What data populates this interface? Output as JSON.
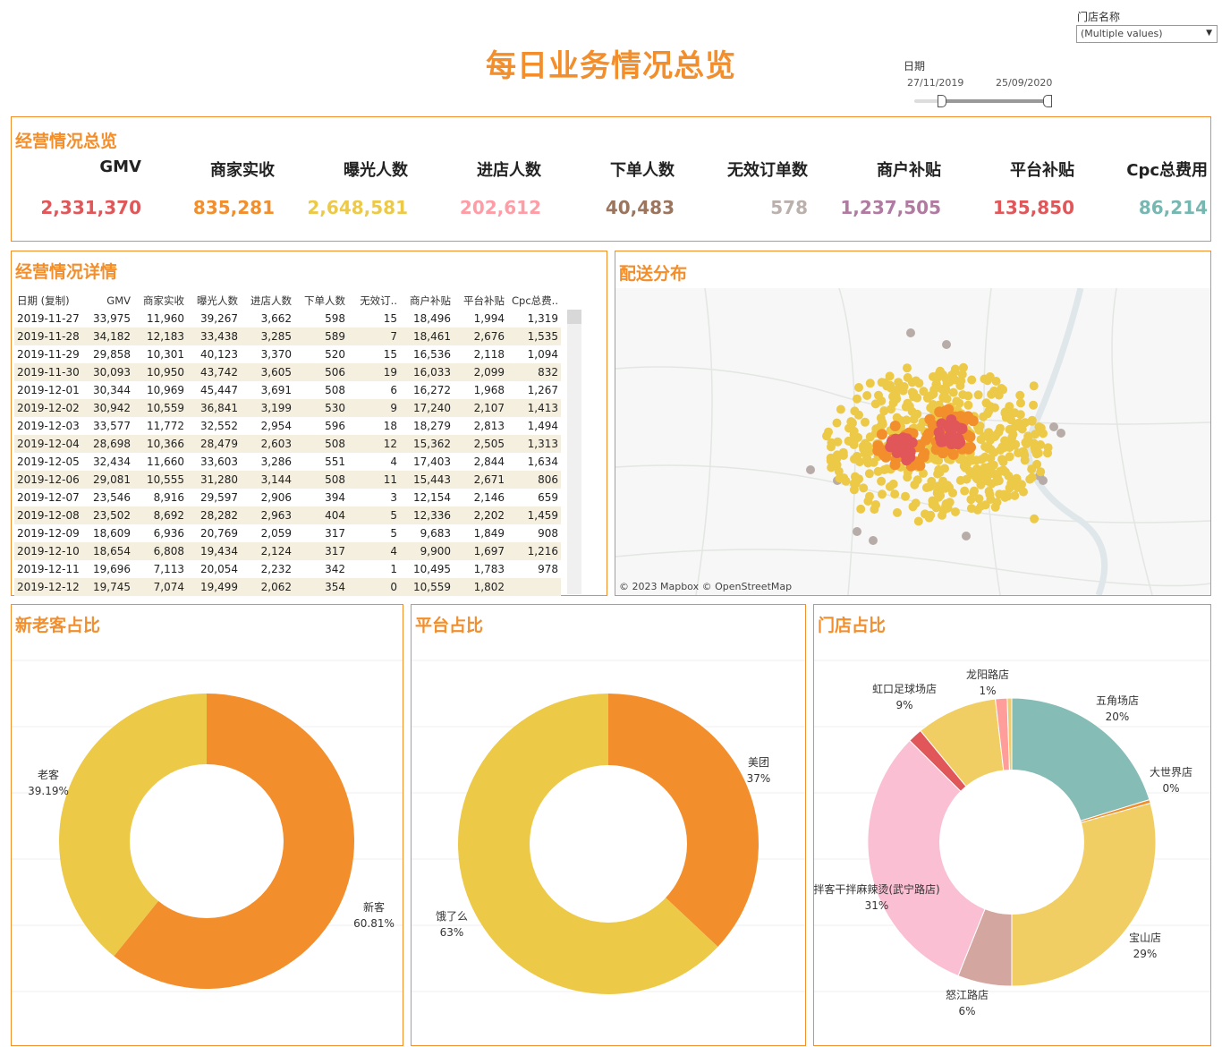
{
  "title": "每日业务情况总览",
  "filters": {
    "store_label": "门店名称",
    "store_value": "(Multiple values)",
    "date_label": "日期",
    "date_start": "27/11/2019",
    "date_end": "25/09/2020"
  },
  "overview": {
    "title": "经营情况总览",
    "kpis": [
      {
        "label": "GMV",
        "value": "2,331,370",
        "color": "#e15759"
      },
      {
        "label": "商家实收",
        "value": "835,281",
        "color": "#f28e2b"
      },
      {
        "label": "曝光人数",
        "value": "2,648,581",
        "color": "#edc948"
      },
      {
        "label": "进店人数",
        "value": "202,612",
        "color": "#ff9da7"
      },
      {
        "label": "下单人数",
        "value": "40,483",
        "color": "#9c755f"
      },
      {
        "label": "无效订单数",
        "value": "578",
        "color": "#bab0ac"
      },
      {
        "label": "商户补贴",
        "value": "1,237,505",
        "color": "#b07aa1"
      },
      {
        "label": "平台补贴",
        "value": "135,850",
        "color": "#e15759"
      },
      {
        "label": "Cpc总费用",
        "value": "86,214",
        "color": "#76b7b2"
      }
    ]
  },
  "detail": {
    "title": "经营情况详情",
    "columns": [
      "日期 (复制)",
      "GMV",
      "商家实收",
      "曝光人数",
      "进店人数",
      "下单人数",
      "无效订..",
      "商户补贴",
      "平台补贴",
      "Cpc总费.."
    ],
    "rows": [
      [
        "2019-11-27",
        "33,975",
        "11,960",
        "39,267",
        "3,662",
        "598",
        "15",
        "18,496",
        "1,994",
        "1,319"
      ],
      [
        "2019-11-28",
        "34,182",
        "12,183",
        "33,438",
        "3,285",
        "589",
        "7",
        "18,461",
        "2,676",
        "1,535"
      ],
      [
        "2019-11-29",
        "29,858",
        "10,301",
        "40,123",
        "3,370",
        "520",
        "15",
        "16,536",
        "2,118",
        "1,094"
      ],
      [
        "2019-11-30",
        "30,093",
        "10,950",
        "43,742",
        "3,605",
        "506",
        "19",
        "16,033",
        "2,099",
        "832"
      ],
      [
        "2019-12-01",
        "30,344",
        "10,969",
        "45,447",
        "3,691",
        "508",
        "6",
        "16,272",
        "1,968",
        "1,267"
      ],
      [
        "2019-12-02",
        "30,942",
        "10,559",
        "36,841",
        "3,199",
        "530",
        "9",
        "17,240",
        "2,107",
        "1,413"
      ],
      [
        "2019-12-03",
        "33,577",
        "11,772",
        "32,552",
        "2,954",
        "596",
        "18",
        "18,279",
        "2,813",
        "1,494"
      ],
      [
        "2019-12-04",
        "28,698",
        "10,366",
        "28,479",
        "2,603",
        "508",
        "12",
        "15,362",
        "2,505",
        "1,313"
      ],
      [
        "2019-12-05",
        "32,434",
        "11,660",
        "33,603",
        "3,286",
        "551",
        "4",
        "17,403",
        "2,844",
        "1,634"
      ],
      [
        "2019-12-06",
        "29,081",
        "10,555",
        "31,280",
        "3,144",
        "508",
        "11",
        "15,443",
        "2,671",
        "806"
      ],
      [
        "2019-12-07",
        "23,546",
        "8,916",
        "29,597",
        "2,906",
        "394",
        "3",
        "12,154",
        "2,146",
        "659"
      ],
      [
        "2019-12-08",
        "23,502",
        "8,692",
        "28,282",
        "2,963",
        "404",
        "5",
        "12,336",
        "2,202",
        "1,459"
      ],
      [
        "2019-12-09",
        "18,609",
        "6,936",
        "20,769",
        "2,059",
        "317",
        "5",
        "9,683",
        "1,849",
        "908"
      ],
      [
        "2019-12-10",
        "18,654",
        "6,808",
        "19,434",
        "2,124",
        "317",
        "4",
        "9,900",
        "1,697",
        "1,216"
      ],
      [
        "2019-12-11",
        "19,696",
        "7,113",
        "20,054",
        "2,232",
        "342",
        "1",
        "10,495",
        "1,783",
        "978"
      ],
      [
        "2019-12-12",
        "19,745",
        "7,074",
        "19,499",
        "2,062",
        "354",
        "0",
        "10,559",
        "1,802",
        ""
      ]
    ]
  },
  "map": {
    "title": "配送分布",
    "credit": "© 2023 Mapbox  © OpenStreetMap"
  },
  "chart_data": [
    {
      "type": "pie",
      "title": "新老客占比",
      "categories": [
        "新客",
        "老客"
      ],
      "values": [
        60.81,
        39.19
      ],
      "labels": [
        "60.81%",
        "39.19%"
      ],
      "colors": [
        "#f28e2b",
        "#edc948"
      ]
    },
    {
      "type": "pie",
      "title": "平台占比",
      "categories": [
        "美团",
        "饿了么"
      ],
      "values": [
        37,
        63
      ],
      "labels": [
        "37%",
        "63%"
      ],
      "colors": [
        "#f28e2b",
        "#edc948"
      ]
    },
    {
      "type": "pie",
      "title": "门店占比",
      "categories": [
        "五角场店",
        "大世界店",
        "宝山店",
        "怒江路店",
        "拌客干拌麻辣烫(武宁路店)",
        "",
        "虹口足球场店",
        "龙阳路店",
        ""
      ],
      "values": [
        20,
        0.4,
        29,
        6,
        31,
        1.6,
        9,
        1.3,
        0.5
      ],
      "labels": [
        "20%",
        "0%",
        "29%",
        "6%",
        "31%",
        "",
        "9%",
        "1%",
        ""
      ],
      "colors": [
        "#86bcb6",
        "#f28e2b",
        "#f1ce63",
        "#d4a6a0",
        "#fabfd2",
        "#e15759",
        "#f1ce63",
        "#ff9d9a",
        "#f1ce63"
      ]
    }
  ]
}
